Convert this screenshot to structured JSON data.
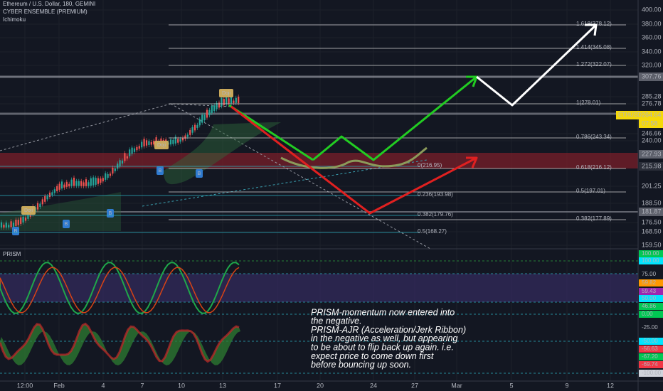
{
  "header": {
    "title": "Ethereum / U.S. Dollar, 180, GEMINI",
    "indicators": [
      "CYBER ENSEMBLE (PREMIUM)",
      "Ichimoku"
    ]
  },
  "price_axis": [
    "400.00",
    "380.00",
    "360.00",
    "340.00",
    "320.00",
    "307.76",
    "285.28",
    "276.78",
    "264.64",
    "07:58",
    "246.66",
    "240.00",
    "227.93",
    "215.98",
    "201.25",
    "188.50",
    "181.87",
    "176.50",
    "168.50",
    "159.50"
  ],
  "symbol_badge": "ETHUSD",
  "fib_right": [
    "1.618(378.12)",
    "1.414(345.08)",
    "1.272(322.07)",
    "1(278.01)",
    "0.786(243.34)",
    "0.618(216.12)",
    "0.5(197.01)",
    "0.382(177.89)"
  ],
  "fib_left": [
    "0(216.95)",
    "0.236(193.98)",
    "0.382(179.76)",
    "0.5(168.27)"
  ],
  "signals": {
    "doji": "Doji",
    "buy": "B"
  },
  "prism": {
    "title": "PRISM",
    "axis": [
      "100.00",
      "100.00",
      "75.00",
      "59.82",
      "59.43",
      "50.00",
      "46.86",
      "0.00",
      "-25.00",
      "-50.00",
      "-56.63",
      "-67.20",
      "-69.74",
      "-100.00"
    ]
  },
  "annotation": [
    "PRISM-momentum now entered into",
    "the negative.",
    "PRISM-AJR (Acceleration/Jerk Ribbon)",
    "in the negative as well, but appearing",
    "to be about to flip back up again. i.e.",
    "expect price to come down first",
    "before bouncing up soon."
  ],
  "time_axis": [
    "12:00",
    "Feb",
    "4",
    "7",
    "10",
    "13",
    "17",
    "20",
    "24",
    "27",
    "Mar",
    "5",
    "9",
    "12"
  ]
}
